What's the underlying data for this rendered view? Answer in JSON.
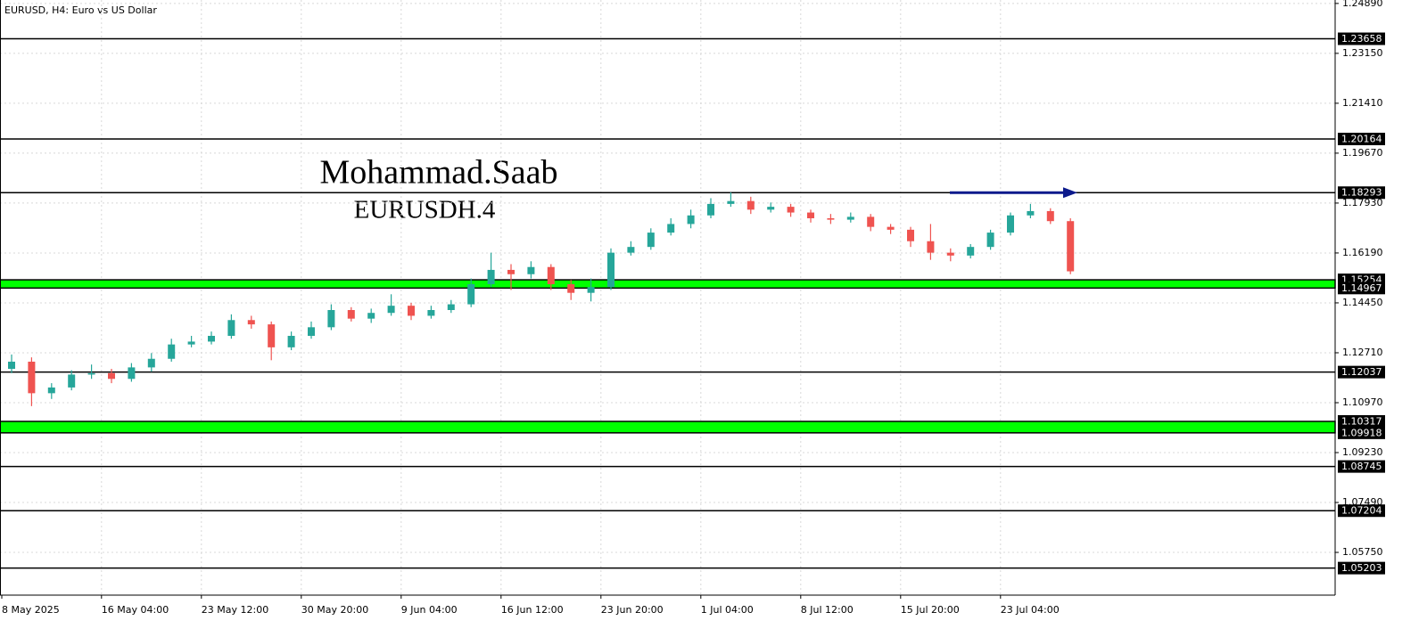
{
  "chart_data": {
    "type": "candlestick",
    "header": "EURUSD, H4:  Euro vs US Dollar",
    "title": "Mohammad.Saab",
    "subtitle": "EURUSDH.4",
    "up_color": "#26a69a",
    "down_color": "#ef5350",
    "grid": true,
    "x": [
      "8 May 2025",
      null,
      null,
      null,
      null,
      "16 May 04:00",
      null,
      null,
      null,
      null,
      "23 May 12:00",
      null,
      null,
      null,
      null,
      "30 May 20:00",
      null,
      null,
      null,
      null,
      "9 Jun 04:00",
      null,
      null,
      null,
      null,
      "16 Jun 12:00",
      null,
      null,
      null,
      null,
      "23 Jun 20:00",
      null,
      null,
      null,
      null,
      "1 Jul 04:00",
      null,
      null,
      null,
      null,
      "8 Jul 12:00",
      null,
      null,
      null,
      null,
      "15 Jul 20:00",
      null,
      null,
      null,
      null,
      "23 Jul 04:00",
      null,
      null,
      null
    ],
    "open": [
      1.1215,
      1.124,
      1.113,
      1.115,
      1.1195,
      1.12,
      1.118,
      1.122,
      1.125,
      1.13,
      1.131,
      1.133,
      1.1385,
      1.137,
      1.129,
      1.133,
      1.136,
      1.142,
      1.139,
      1.141,
      1.1435,
      1.14,
      1.142,
      1.144,
      1.151,
      1.156,
      1.1545,
      1.157,
      1.151,
      1.148,
      1.15,
      1.162,
      1.164,
      1.169,
      1.172,
      1.175,
      1.179,
      1.18,
      1.177,
      1.178,
      1.176,
      1.174,
      1.1735,
      1.1745,
      1.171,
      1.17,
      1.166,
      1.162,
      1.161,
      1.164,
      1.169,
      1.175,
      1.1765,
      1.173
    ],
    "high": [
      1.1265,
      1.1255,
      1.1165,
      1.121,
      1.123,
      1.1215,
      1.1235,
      1.127,
      1.132,
      1.133,
      1.1345,
      1.1405,
      1.14,
      1.138,
      1.1345,
      1.138,
      1.144,
      1.143,
      1.1425,
      1.1475,
      1.1445,
      1.1435,
      1.1455,
      1.153,
      1.162,
      1.158,
      1.159,
      1.158,
      1.1525,
      1.153,
      1.1635,
      1.166,
      1.1705,
      1.174,
      1.177,
      1.181,
      1.183,
      1.1815,
      1.1795,
      1.179,
      1.177,
      1.1755,
      1.176,
      1.1755,
      1.172,
      1.171,
      1.172,
      1.1635,
      1.165,
      1.17,
      1.176,
      1.179,
      1.1775,
      1.174
    ],
    "low": [
      1.12,
      1.1085,
      1.111,
      1.114,
      1.118,
      1.1165,
      1.117,
      1.1205,
      1.124,
      1.129,
      1.13,
      1.132,
      1.1355,
      1.1245,
      1.128,
      1.132,
      1.135,
      1.138,
      1.1375,
      1.14,
      1.1385,
      1.139,
      1.141,
      1.143,
      1.15,
      1.149,
      1.153,
      1.149,
      1.1455,
      1.145,
      1.149,
      1.161,
      1.163,
      1.168,
      1.1705,
      1.174,
      1.178,
      1.1755,
      1.176,
      1.1745,
      1.1725,
      1.172,
      1.1725,
      1.1695,
      1.1685,
      1.164,
      1.1595,
      1.159,
      1.16,
      1.163,
      1.168,
      1.174,
      1.172,
      1.1545
    ],
    "close": [
      1.124,
      1.113,
      1.115,
      1.1195,
      1.12,
      1.118,
      1.122,
      1.125,
      1.13,
      1.131,
      1.133,
      1.1385,
      1.137,
      1.129,
      1.133,
      1.136,
      1.142,
      1.139,
      1.141,
      1.1435,
      1.14,
      1.142,
      1.144,
      1.151,
      1.156,
      1.1545,
      1.157,
      1.151,
      1.148,
      1.15,
      1.162,
      1.164,
      1.169,
      1.172,
      1.175,
      1.179,
      1.18,
      1.177,
      1.178,
      1.176,
      1.174,
      1.1735,
      1.1745,
      1.171,
      1.17,
      1.166,
      1.162,
      1.161,
      1.164,
      1.169,
      1.175,
      1.1765,
      1.173,
      1.1555
    ],
    "ylim": [
      1.0426,
      1.2501
    ],
    "yticks": [
      {
        "value": 1.2489,
        "label": "1.24890"
      },
      {
        "value": 1.2315,
        "label": "1.23150"
      },
      {
        "value": 1.2141,
        "label": "1.21410"
      },
      {
        "value": 1.1967,
        "label": "1.19670"
      },
      {
        "value": 1.1793,
        "label": "1.17930"
      },
      {
        "value": 1.1619,
        "label": "1.16190"
      },
      {
        "value": 1.1445,
        "label": "1.14450"
      },
      {
        "value": 1.1271,
        "label": "1.12710"
      },
      {
        "value": 1.1097,
        "label": "1.10970"
      },
      {
        "value": 1.0923,
        "label": "1.09230"
      },
      {
        "value": 1.0749,
        "label": "1.07490"
      },
      {
        "value": 1.0575,
        "label": "1.05750"
      }
    ],
    "levels": [
      {
        "value": 1.23658,
        "label": "1.23658"
      },
      {
        "value": 1.20164,
        "label": "1.20164"
      },
      {
        "value": 1.18293,
        "label": "1.18293"
      },
      {
        "value": 1.12037,
        "label": "1.12037"
      },
      {
        "value": 1.08745,
        "label": "1.08745"
      },
      {
        "value": 1.07204,
        "label": "1.07204"
      },
      {
        "value": 1.05203,
        "label": "1.05203"
      }
    ],
    "zones": [
      {
        "high": {
          "value": 1.15254,
          "label": "1.15254"
        },
        "low": {
          "value": 1.14967,
          "label": "1.14967"
        }
      },
      {
        "high": {
          "value": 1.10317,
          "label": "1.10317"
        },
        "low": {
          "value": 1.09918,
          "label": "1.09918"
        }
      }
    ]
  }
}
